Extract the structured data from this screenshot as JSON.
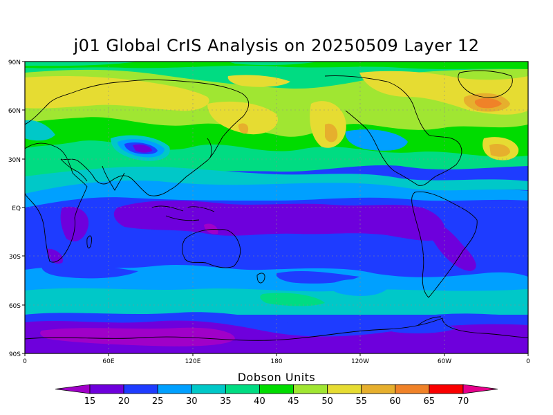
{
  "title": "j01 Global CrIS Analysis on 20250509 Layer 12",
  "colorbar": {
    "title": "Dobson Units",
    "levels": [
      "15",
      "20",
      "25",
      "30",
      "35",
      "40",
      "45",
      "50",
      "55",
      "60",
      "65",
      "70"
    ],
    "colors": [
      "#a000c8",
      "#6e00dc",
      "#1e3cff",
      "#00a0ff",
      "#00c8c8",
      "#00dc82",
      "#00dc00",
      "#a0e632",
      "#e6dc32",
      "#e6af2d",
      "#f08228",
      "#fa0000",
      "#e6008c"
    ]
  },
  "axes": {
    "y_ticks": [
      "90N",
      "60N",
      "30N",
      "EQ",
      "30S",
      "60S",
      "90S"
    ],
    "x_ticks": [
      "0",
      "60E",
      "120E",
      "180",
      "120W",
      "60W",
      "0"
    ]
  },
  "colors": {
    "frame": "#000000",
    "grid": "#8c8c8c",
    "coast": "#000000"
  }
}
